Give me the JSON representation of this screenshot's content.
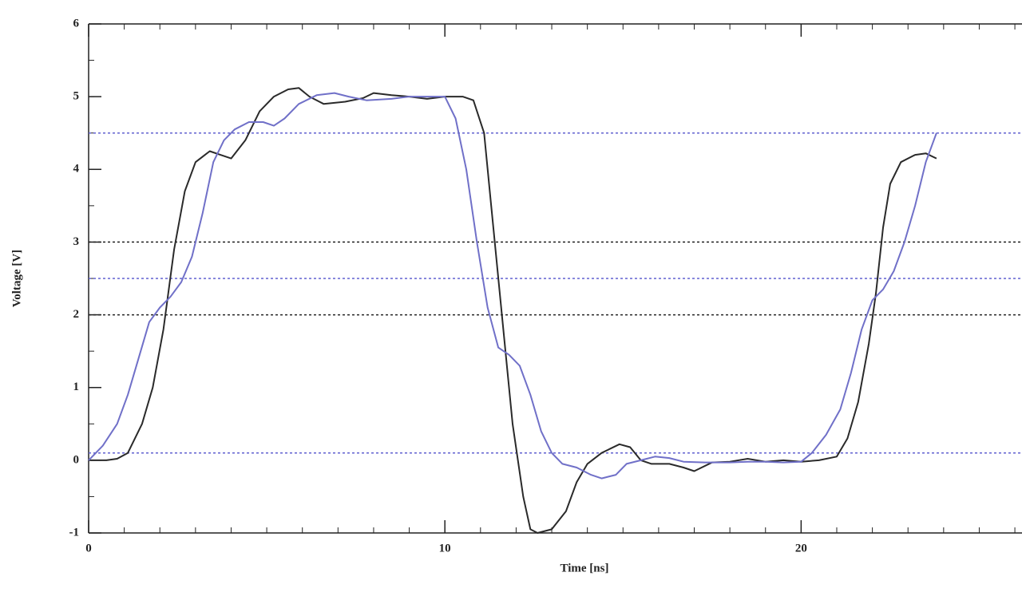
{
  "chart_data": {
    "type": "line",
    "xlabel": "Time [ns]",
    "ylabel": "Voltage [V]",
    "xlim": [
      0,
      26.2
    ],
    "xticks": [
      0,
      10,
      20
    ],
    "ylim": [
      -1,
      6
    ],
    "yticks": [
      -1,
      0,
      1,
      2,
      3,
      4,
      5,
      6
    ],
    "minor_ticks": {
      "x": 1,
      "y": 0.5
    },
    "reference_lines": [
      {
        "value": 4.5,
        "color": "#6060d0"
      },
      {
        "value": 2.5,
        "color": "#6060d0"
      },
      {
        "value": 0.1,
        "color": "#6060d0"
      },
      {
        "value": 3,
        "color": "#222222"
      },
      {
        "value": 2,
        "color": "#222222"
      }
    ],
    "series": [
      {
        "color": "#2a2a2a",
        "x": [
          0,
          0.5,
          0.8,
          1.1,
          1.5,
          1.8,
          2.1,
          2.4,
          2.7,
          3.0,
          3.4,
          3.7,
          4.0,
          4.4,
          4.8,
          5.2,
          5.6,
          5.9,
          6.2,
          6.6,
          7.2,
          7.7,
          8.0,
          8.5,
          9.0,
          9.5,
          10,
          10.5,
          10.8,
          11.1,
          11.3,
          11.6,
          11.9,
          12.2,
          12.4,
          12.6,
          13.0,
          13.4,
          13.7,
          14.0,
          14.4,
          14.9,
          15.2,
          15.5,
          15.8,
          16.3,
          16.7,
          17.0,
          17.5,
          18.0,
          18.5,
          19.0,
          19.5,
          20.0,
          20.5,
          21.0,
          21.3,
          21.6,
          21.9,
          22.1,
          22.3,
          22.5,
          22.8,
          23.2,
          23.5,
          23.8
        ],
        "values": [
          0,
          0,
          0.02,
          0.1,
          0.5,
          1.0,
          1.8,
          2.9,
          3.7,
          4.1,
          4.25,
          4.2,
          4.15,
          4.4,
          4.8,
          5.0,
          5.1,
          5.12,
          5.0,
          4.9,
          4.93,
          4.98,
          5.05,
          5.02,
          5.0,
          4.97,
          5.0,
          5.0,
          4.95,
          4.5,
          3.5,
          2.0,
          0.5,
          -0.5,
          -0.95,
          -1.0,
          -0.95,
          -0.7,
          -0.3,
          -0.05,
          0.1,
          0.22,
          0.18,
          0.0,
          -0.05,
          -0.05,
          -0.1,
          -0.15,
          -0.03,
          -0.02,
          0.02,
          -0.02,
          0,
          -0.02,
          0.0,
          0.05,
          0.3,
          0.8,
          1.6,
          2.3,
          3.2,
          3.8,
          4.1,
          4.2,
          4.22,
          4.15
        ]
      },
      {
        "color": "#7070c8",
        "x": [
          0,
          0.4,
          0.8,
          1.1,
          1.4,
          1.7,
          2.0,
          2.3,
          2.6,
          2.9,
          3.2,
          3.5,
          3.8,
          4.1,
          4.5,
          4.9,
          5.2,
          5.5,
          5.9,
          6.4,
          6.9,
          7.3,
          7.8,
          8.5,
          9.0,
          9.5,
          10.0,
          10.3,
          10.6,
          10.9,
          11.2,
          11.5,
          11.8,
          12.1,
          12.4,
          12.7,
          13.0,
          13.3,
          13.7,
          14.1,
          14.4,
          14.8,
          15.1,
          15.5,
          15.9,
          16.3,
          16.7,
          17.3,
          18.0,
          18.5,
          19.0,
          19.5,
          20.0,
          20.3,
          20.7,
          21.1,
          21.4,
          21.7,
          22.0,
          22.3,
          22.6,
          22.9,
          23.2,
          23.5,
          23.8
        ],
        "values": [
          0,
          0.2,
          0.5,
          0.9,
          1.4,
          1.9,
          2.1,
          2.25,
          2.45,
          2.8,
          3.4,
          4.1,
          4.4,
          4.55,
          4.65,
          4.65,
          4.6,
          4.7,
          4.9,
          5.02,
          5.05,
          5.0,
          4.95,
          4.97,
          5.0,
          5.0,
          5.0,
          4.7,
          4.0,
          3.0,
          2.1,
          1.55,
          1.45,
          1.3,
          0.9,
          0.4,
          0.1,
          -0.05,
          -0.1,
          -0.2,
          -0.25,
          -0.2,
          -0.05,
          0.0,
          0.05,
          0.03,
          -0.02,
          -0.03,
          -0.03,
          -0.02,
          -0.02,
          -0.03,
          -0.02,
          0.1,
          0.35,
          0.7,
          1.2,
          1.8,
          2.2,
          2.35,
          2.6,
          3.0,
          3.5,
          4.1,
          4.5
        ]
      }
    ]
  }
}
